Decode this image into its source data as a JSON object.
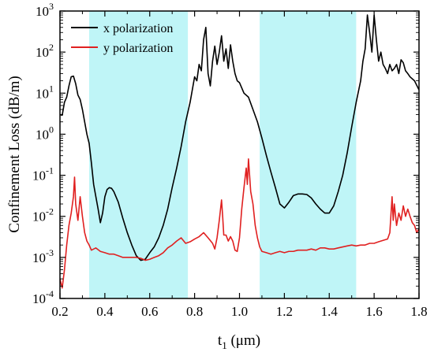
{
  "chart_data": {
    "type": "line",
    "xlabel": "t",
    "xlabel_subscript": "1",
    "xlabel_unit": " (μm)",
    "ylabel": "Confinement Loss (dB/m)",
    "xlim": [
      0.2,
      1.8
    ],
    "ylim_log10": [
      -4,
      3
    ],
    "yscale": "log",
    "x_ticks": [
      "0.2",
      "0.4",
      "0.6",
      "0.8",
      "1.0",
      "1.2",
      "1.4",
      "1.6",
      "1.8"
    ],
    "y_ticks": [
      {
        "base": "10",
        "exp": "-4"
      },
      {
        "base": "10",
        "exp": "-3"
      },
      {
        "base": "10",
        "exp": "-2"
      },
      {
        "base": "10",
        "exp": "-1"
      },
      {
        "base": "10",
        "exp": "0"
      },
      {
        "base": "10",
        "exp": "1"
      },
      {
        "base": "10",
        "exp": "2"
      },
      {
        "base": "10",
        "exp": "3"
      }
    ],
    "grid": false,
    "legend_position": "top-left",
    "shaded_regions": [
      {
        "x": [
          0.33,
          0.77
        ],
        "color": "#bff5f7"
      },
      {
        "x": [
          1.09,
          1.52
        ],
        "color": "#bff5f7"
      }
    ],
    "series": [
      {
        "name": "x polarization",
        "color": "#000000",
        "points": [
          [
            0.2,
            3
          ],
          [
            0.21,
            2.9
          ],
          [
            0.22,
            6
          ],
          [
            0.23,
            8
          ],
          [
            0.24,
            15
          ],
          [
            0.25,
            25
          ],
          [
            0.26,
            26
          ],
          [
            0.27,
            17
          ],
          [
            0.28,
            9
          ],
          [
            0.29,
            7
          ],
          [
            0.3,
            4
          ],
          [
            0.31,
            2
          ],
          [
            0.32,
            1
          ],
          [
            0.33,
            0.6
          ],
          [
            0.34,
            0.2
          ],
          [
            0.35,
            0.06
          ],
          [
            0.36,
            0.03
          ],
          [
            0.37,
            0.015
          ],
          [
            0.38,
            0.007
          ],
          [
            0.39,
            0.012
          ],
          [
            0.4,
            0.03
          ],
          [
            0.41,
            0.045
          ],
          [
            0.42,
            0.05
          ],
          [
            0.43,
            0.048
          ],
          [
            0.44,
            0.04
          ],
          [
            0.46,
            0.022
          ],
          [
            0.48,
            0.009
          ],
          [
            0.5,
            0.004
          ],
          [
            0.52,
            0.002
          ],
          [
            0.54,
            0.0011
          ],
          [
            0.56,
            0.00085
          ],
          [
            0.58,
            0.0009
          ],
          [
            0.6,
            0.0013
          ],
          [
            0.62,
            0.0018
          ],
          [
            0.64,
            0.003
          ],
          [
            0.66,
            0.006
          ],
          [
            0.68,
            0.015
          ],
          [
            0.7,
            0.05
          ],
          [
            0.72,
            0.15
          ],
          [
            0.74,
            0.5
          ],
          [
            0.76,
            2
          ],
          [
            0.78,
            6
          ],
          [
            0.8,
            25
          ],
          [
            0.81,
            20
          ],
          [
            0.82,
            50
          ],
          [
            0.83,
            35
          ],
          [
            0.84,
            200
          ],
          [
            0.85,
            400
          ],
          [
            0.86,
            30
          ],
          [
            0.87,
            15
          ],
          [
            0.88,
            60
          ],
          [
            0.89,
            140
          ],
          [
            0.9,
            50
          ],
          [
            0.91,
            100
          ],
          [
            0.92,
            250
          ],
          [
            0.93,
            60
          ],
          [
            0.94,
            120
          ],
          [
            0.95,
            40
          ],
          [
            0.96,
            150
          ],
          [
            0.97,
            60
          ],
          [
            0.98,
            30
          ],
          [
            0.99,
            20
          ],
          [
            1.0,
            18
          ],
          [
            1.02,
            10
          ],
          [
            1.04,
            8
          ],
          [
            1.06,
            4
          ],
          [
            1.08,
            2
          ],
          [
            1.1,
            0.8
          ],
          [
            1.12,
            0.3
          ],
          [
            1.14,
            0.12
          ],
          [
            1.16,
            0.05
          ],
          [
            1.18,
            0.02
          ],
          [
            1.2,
            0.016
          ],
          [
            1.22,
            0.022
          ],
          [
            1.24,
            0.032
          ],
          [
            1.26,
            0.035
          ],
          [
            1.28,
            0.035
          ],
          [
            1.3,
            0.034
          ],
          [
            1.32,
            0.028
          ],
          [
            1.34,
            0.02
          ],
          [
            1.36,
            0.015
          ],
          [
            1.38,
            0.012
          ],
          [
            1.4,
            0.012
          ],
          [
            1.42,
            0.018
          ],
          [
            1.44,
            0.04
          ],
          [
            1.46,
            0.1
          ],
          [
            1.48,
            0.35
          ],
          [
            1.5,
            1.5
          ],
          [
            1.52,
            6
          ],
          [
            1.54,
            20
          ],
          [
            1.55,
            60
          ],
          [
            1.56,
            120
          ],
          [
            1.57,
            800
          ],
          [
            1.58,
            300
          ],
          [
            1.59,
            100
          ],
          [
            1.6,
            800
          ],
          [
            1.61,
            200
          ],
          [
            1.62,
            60
          ],
          [
            1.63,
            100
          ],
          [
            1.64,
            50
          ],
          [
            1.65,
            40
          ],
          [
            1.66,
            30
          ],
          [
            1.67,
            50
          ],
          [
            1.68,
            35
          ],
          [
            1.69,
            40
          ],
          [
            1.7,
            50
          ],
          [
            1.71,
            30
          ],
          [
            1.72,
            65
          ],
          [
            1.73,
            55
          ],
          [
            1.74,
            35
          ],
          [
            1.75,
            30
          ],
          [
            1.76,
            25
          ],
          [
            1.78,
            20
          ],
          [
            1.8,
            12
          ]
        ]
      },
      {
        "name": "y polarization",
        "color": "#e02020",
        "points": [
          [
            0.2,
            0.0003
          ],
          [
            0.21,
            0.00018
          ],
          [
            0.22,
            0.0005
          ],
          [
            0.23,
            0.002
          ],
          [
            0.24,
            0.006
          ],
          [
            0.25,
            0.012
          ],
          [
            0.26,
            0.03
          ],
          [
            0.265,
            0.09
          ],
          [
            0.27,
            0.02
          ],
          [
            0.28,
            0.008
          ],
          [
            0.29,
            0.03
          ],
          [
            0.3,
            0.01
          ],
          [
            0.31,
            0.004
          ],
          [
            0.32,
            0.0025
          ],
          [
            0.33,
            0.002
          ],
          [
            0.34,
            0.0015
          ],
          [
            0.36,
            0.0017
          ],
          [
            0.38,
            0.0014
          ],
          [
            0.4,
            0.0013
          ],
          [
            0.42,
            0.0012
          ],
          [
            0.44,
            0.0012
          ],
          [
            0.46,
            0.0011
          ],
          [
            0.48,
            0.001
          ],
          [
            0.5,
            0.001
          ],
          [
            0.52,
            0.001
          ],
          [
            0.54,
            0.001
          ],
          [
            0.56,
            0.00095
          ],
          [
            0.58,
            0.00085
          ],
          [
            0.6,
            0.0009
          ],
          [
            0.62,
            0.001
          ],
          [
            0.64,
            0.0011
          ],
          [
            0.66,
            0.0013
          ],
          [
            0.68,
            0.0017
          ],
          [
            0.7,
            0.002
          ],
          [
            0.72,
            0.0025
          ],
          [
            0.74,
            0.003
          ],
          [
            0.76,
            0.0022
          ],
          [
            0.78,
            0.0024
          ],
          [
            0.8,
            0.0028
          ],
          [
            0.82,
            0.0032
          ],
          [
            0.84,
            0.004
          ],
          [
            0.86,
            0.003
          ],
          [
            0.88,
            0.0022
          ],
          [
            0.89,
            0.0016
          ],
          [
            0.9,
            0.003
          ],
          [
            0.91,
            0.008
          ],
          [
            0.92,
            0.025
          ],
          [
            0.925,
            0.01
          ],
          [
            0.93,
            0.0035
          ],
          [
            0.94,
            0.0035
          ],
          [
            0.95,
            0.0025
          ],
          [
            0.96,
            0.0032
          ],
          [
            0.97,
            0.0025
          ],
          [
            0.98,
            0.0015
          ],
          [
            0.99,
            0.0014
          ],
          [
            1.0,
            0.003
          ],
          [
            1.01,
            0.015
          ],
          [
            1.02,
            0.05
          ],
          [
            1.03,
            0.15
          ],
          [
            1.035,
            0.06
          ],
          [
            1.04,
            0.25
          ],
          [
            1.045,
            0.1
          ],
          [
            1.05,
            0.04
          ],
          [
            1.06,
            0.02
          ],
          [
            1.07,
            0.006
          ],
          [
            1.08,
            0.003
          ],
          [
            1.09,
            0.0018
          ],
          [
            1.1,
            0.0014
          ],
          [
            1.12,
            0.0013
          ],
          [
            1.14,
            0.0012
          ],
          [
            1.16,
            0.0013
          ],
          [
            1.18,
            0.0014
          ],
          [
            1.2,
            0.0013
          ],
          [
            1.22,
            0.0014
          ],
          [
            1.24,
            0.0014
          ],
          [
            1.26,
            0.0015
          ],
          [
            1.28,
            0.0015
          ],
          [
            1.3,
            0.0015
          ],
          [
            1.32,
            0.0016
          ],
          [
            1.34,
            0.0015
          ],
          [
            1.36,
            0.0017
          ],
          [
            1.38,
            0.0017
          ],
          [
            1.4,
            0.0016
          ],
          [
            1.42,
            0.0016
          ],
          [
            1.44,
            0.0017
          ],
          [
            1.46,
            0.0018
          ],
          [
            1.48,
            0.0019
          ],
          [
            1.5,
            0.002
          ],
          [
            1.52,
            0.0019
          ],
          [
            1.54,
            0.002
          ],
          [
            1.56,
            0.002
          ],
          [
            1.58,
            0.0022
          ],
          [
            1.6,
            0.0022
          ],
          [
            1.62,
            0.0024
          ],
          [
            1.64,
            0.0026
          ],
          [
            1.66,
            0.0028
          ],
          [
            1.67,
            0.004
          ],
          [
            1.68,
            0.03
          ],
          [
            1.685,
            0.008
          ],
          [
            1.69,
            0.02
          ],
          [
            1.7,
            0.006
          ],
          [
            1.71,
            0.012
          ],
          [
            1.72,
            0.008
          ],
          [
            1.73,
            0.018
          ],
          [
            1.74,
            0.01
          ],
          [
            1.75,
            0.015
          ],
          [
            1.76,
            0.01
          ],
          [
            1.77,
            0.007
          ],
          [
            1.78,
            0.006
          ],
          [
            1.79,
            0.004
          ],
          [
            1.8,
            0.005
          ]
        ]
      }
    ]
  }
}
